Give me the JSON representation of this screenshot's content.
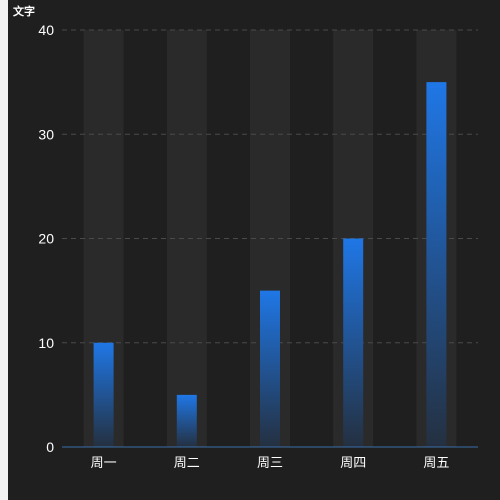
{
  "chart_data": {
    "type": "bar",
    "title": "文字",
    "categories": [
      "周一",
      "周二",
      "周三",
      "周四",
      "周五"
    ],
    "values": [
      10,
      5,
      15,
      20,
      35
    ],
    "ylim": [
      0,
      40
    ],
    "yticks": [
      0,
      10,
      20,
      30,
      40
    ],
    "grid": true,
    "background_bars": true,
    "colors": {
      "panel_background": "#1f1f1f",
      "background_bar": "#2a2a2a",
      "bar_gradient_top": "#1f77e6",
      "bar_gradient_bottom": "#243040",
      "grid_line": "#4a4a4a",
      "axis_line": "#3a6fa8",
      "text": "#ffffff"
    }
  }
}
